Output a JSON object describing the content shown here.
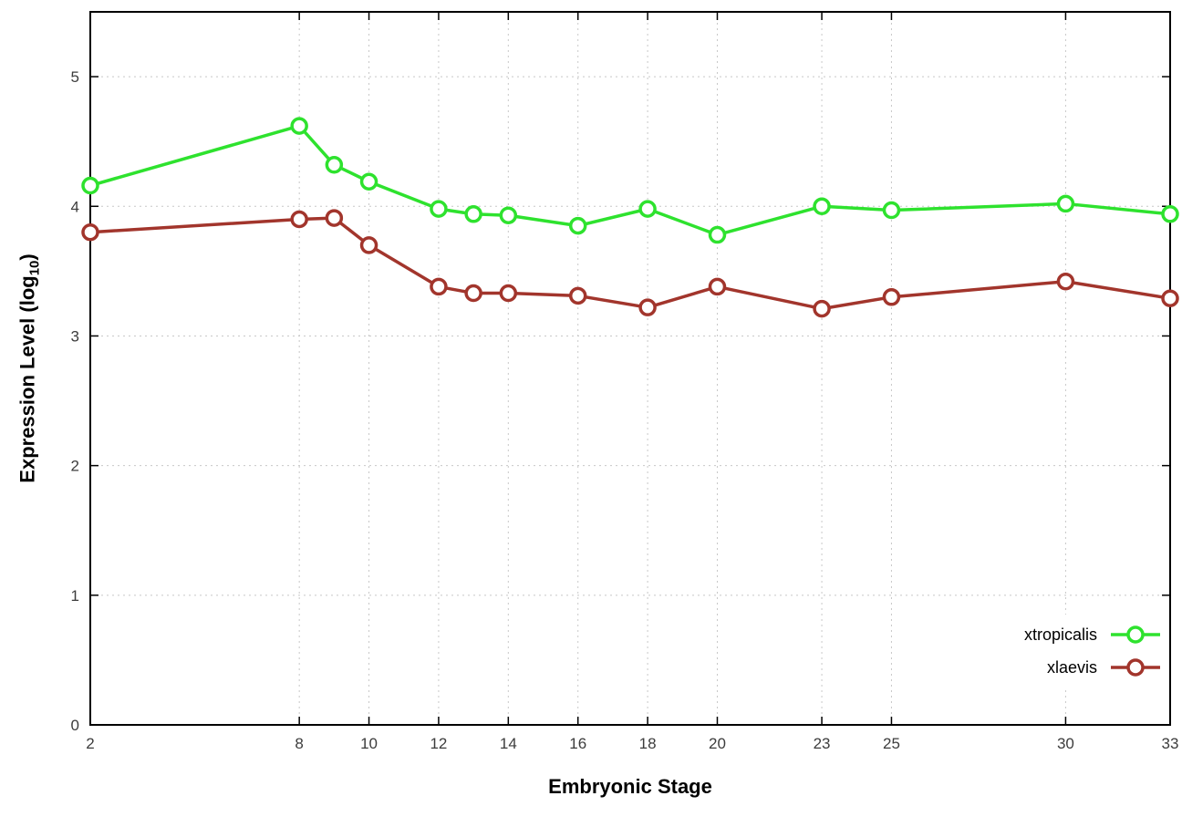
{
  "chart_data": {
    "type": "line",
    "title": "",
    "xlabel": "Embryonic Stage",
    "ylabel": {
      "prefix": "Expression Level (log",
      "sub": "10",
      "suffix": ")"
    },
    "x": [
      2,
      8,
      9,
      10,
      12,
      13,
      14,
      16,
      18,
      20,
      23,
      25,
      30,
      33
    ],
    "xticks": [
      2,
      8,
      10,
      12,
      14,
      16,
      18,
      20,
      23,
      25,
      30,
      33
    ],
    "yticks": [
      0,
      1,
      2,
      3,
      4,
      5
    ],
    "xlim": [
      2,
      33
    ],
    "ylim": [
      0,
      5.5
    ],
    "grid": true,
    "grid_color": "#c8c8c8",
    "axis_color": "#000000",
    "tick_label_color": "#3c3c3c",
    "legend_position": "bottom-right-inside",
    "series": [
      {
        "name": "xtropicalis",
        "color": "#2ee22e",
        "marker": "open-circle",
        "values": [
          4.16,
          4.62,
          4.32,
          4.19,
          3.98,
          3.94,
          3.93,
          3.85,
          3.98,
          3.78,
          4.0,
          3.97,
          4.02,
          3.94
        ]
      },
      {
        "name": "xlaevis",
        "color": "#a2352c",
        "marker": "open-circle",
        "values": [
          3.8,
          3.9,
          3.91,
          3.7,
          3.38,
          3.33,
          3.33,
          3.31,
          3.22,
          3.38,
          3.21,
          3.3,
          3.42,
          3.29
        ]
      }
    ]
  }
}
